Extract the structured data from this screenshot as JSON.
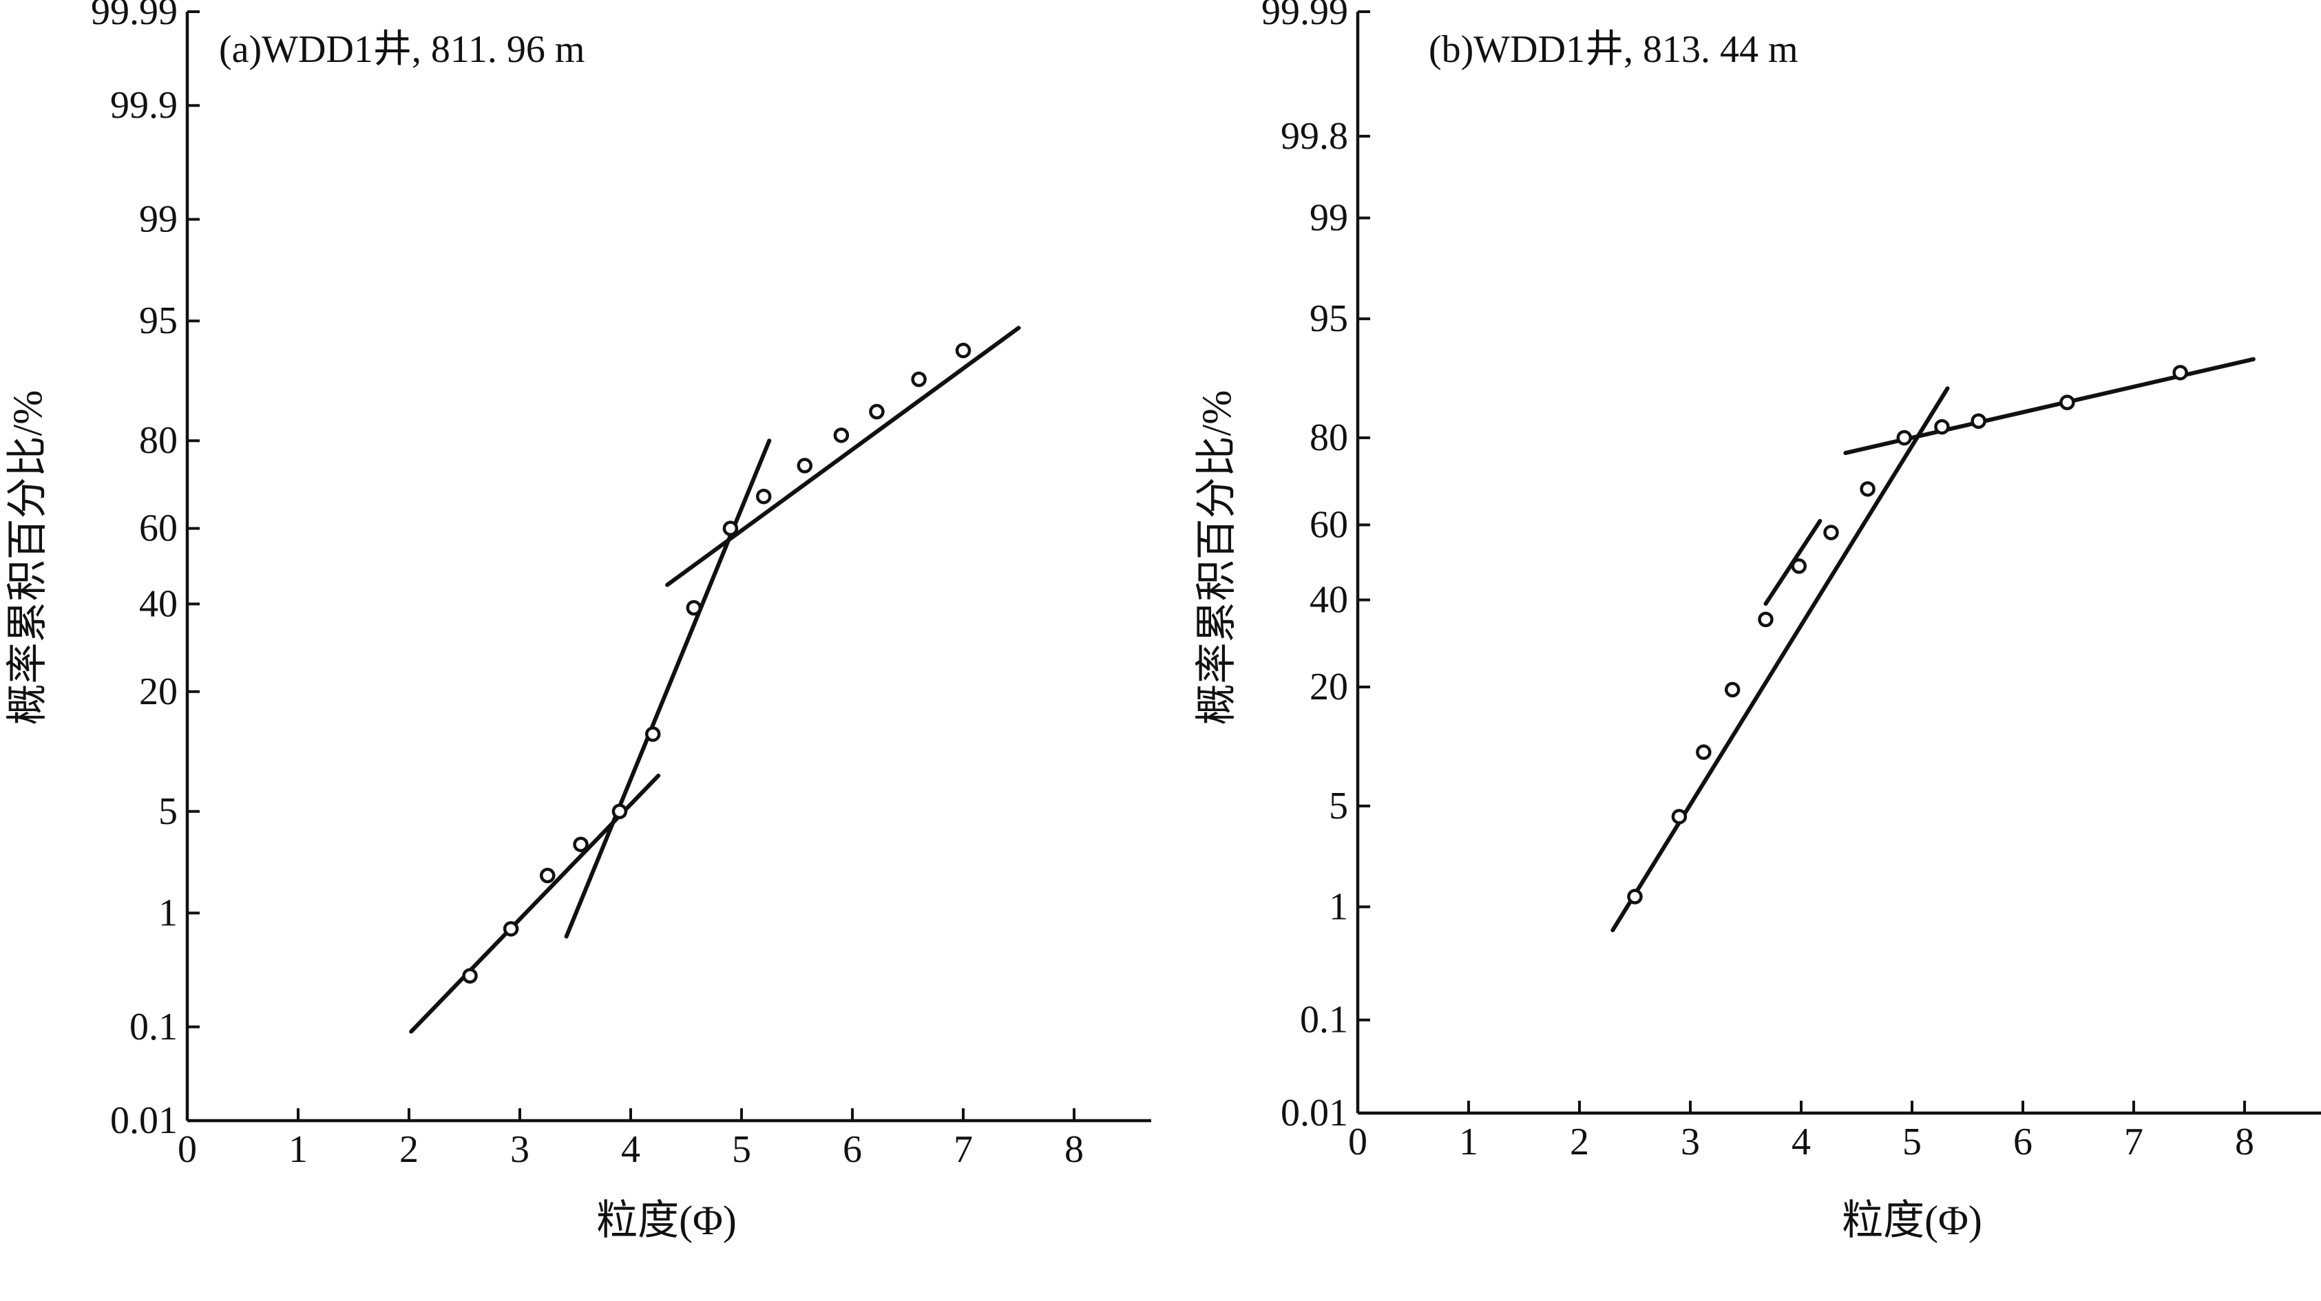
{
  "chart_data": [
    {
      "type": "scatter",
      "title": "(a)WDD1井, 811. 96 m",
      "xlabel": "粒度(Φ)",
      "ylabel": "概率累积百分比/%",
      "x_ticks": [
        "0",
        "1",
        "2",
        "3",
        "4",
        "5",
        "6",
        "7",
        "8"
      ],
      "xlim": [
        0,
        8.7
      ],
      "y_ticks": [
        "0.01",
        "0.1",
        "1",
        "5",
        "20",
        "40",
        "60",
        "80",
        "95",
        "99",
        "99.9",
        "99.99"
      ],
      "y_scale": "probability",
      "grid": false,
      "points": [
        {
          "x": 2.55,
          "y": 0.3
        },
        {
          "x": 2.92,
          "y": 0.75
        },
        {
          "x": 3.25,
          "y": 1.9
        },
        {
          "x": 3.55,
          "y": 3.1
        },
        {
          "x": 3.9,
          "y": 5
        },
        {
          "x": 4.2,
          "y": 13
        },
        {
          "x": 4.57,
          "y": 39
        },
        {
          "x": 4.9,
          "y": 60
        },
        {
          "x": 5.2,
          "y": 68
        },
        {
          "x": 5.57,
          "y": 75
        },
        {
          "x": 5.9,
          "y": 81
        },
        {
          "x": 6.22,
          "y": 85
        },
        {
          "x": 6.6,
          "y": 89.5
        },
        {
          "x": 7.0,
          "y": 92.6
        }
      ],
      "fit_lines": [
        {
          "x": [
            2.02,
            4.25
          ],
          "y": [
            0.09,
            8.0
          ]
        },
        {
          "x": 3.42,
          "y": [
            0.65,
            80
          ]
        },
        {
          "x": [
            4.33,
            7.5
          ],
          "y": [
            45,
            94.5
          ]
        }
      ]
    },
    {
      "type": "scatter",
      "title": "(b)WDD1井, 813. 44 m",
      "xlabel": "粒度(Φ)",
      "ylabel": "概率累积百分比/%",
      "x_ticks": [
        "0",
        "1",
        "2",
        "3",
        "4",
        "5",
        "6",
        "7",
        "8"
      ],
      "xlim": [
        0,
        8.6
      ],
      "y_ticks": [
        "0.01",
        "0.1",
        "1",
        "5",
        "20",
        "40",
        "60",
        "80",
        "95",
        "99",
        "99.8",
        "99.99"
      ],
      "y_scale": "probability",
      "grid": false,
      "points": [
        {
          "x": 2.5,
          "y": 1.2
        },
        {
          "x": 2.9,
          "y": 4.3
        },
        {
          "x": 3.12,
          "y": 10
        },
        {
          "x": 3.38,
          "y": 19.5
        },
        {
          "x": 3.68,
          "y": 35
        },
        {
          "x": 3.98,
          "y": 49
        },
        {
          "x": 4.27,
          "y": 58
        },
        {
          "x": 4.6,
          "y": 69
        },
        {
          "x": 4.93,
          "y": 80
        },
        {
          "x": 5.27,
          "y": 82
        },
        {
          "x": 5.6,
          "y": 83
        },
        {
          "x": 6.4,
          "y": 86
        },
        {
          "x": 7.42,
          "y": 90
        }
      ],
      "fit_lines": [
        {
          "x": [
            2.3,
            5.32
          ],
          "y": [
            0.65,
            88
          ]
        },
        {
          "x": [
            3.68,
            4.17
          ],
          "y": [
            39,
            61
          ]
        },
        {
          "x": [
            4.4,
            8.08
          ],
          "y": [
            77,
            91.5
          ]
        }
      ]
    }
  ]
}
